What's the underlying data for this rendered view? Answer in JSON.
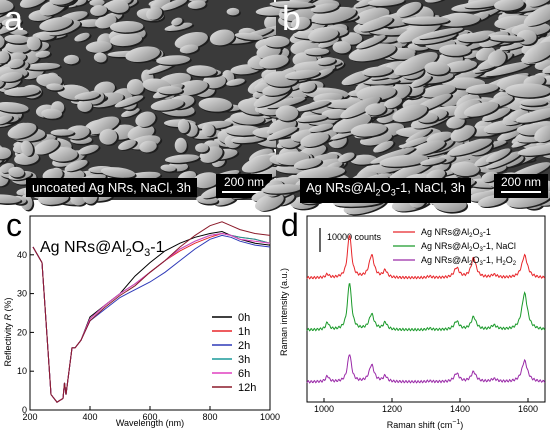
{
  "panels": {
    "a": {
      "letter": "a",
      "caption": "uncoated Ag NRs, NaCl, 3h",
      "scale_label": "200 nm"
    },
    "b": {
      "letter": "b",
      "caption_pre": "Ag NRs@Al",
      "caption_sub1": "2",
      "caption_mid": "O",
      "caption_sub2": "3",
      "caption_post": "-1, NaCl, 3h",
      "scale_label": "200 nm"
    },
    "c": {
      "letter": "c"
    },
    "d": {
      "letter": "d"
    }
  },
  "chart_data": [
    {
      "panel": "c",
      "type": "line",
      "title": "Ag NRs@Al2O3-1",
      "title_parts": {
        "pre": "Ag NRs@Al",
        "sub1": "2",
        "mid": "O",
        "sub2": "3",
        "post": "-1"
      },
      "xlabel": "Wavelength (nm)",
      "ylabel": "Reflectivity R (%)",
      "ylabel_parts": {
        "pre": "Reflectivity ",
        "ital": "R",
        "post": " (%)"
      },
      "xlim": [
        200,
        1000
      ],
      "ylim": [
        0,
        50
      ],
      "xticks": [
        200,
        400,
        600,
        800,
        1000
      ],
      "yticks": [
        0,
        10,
        20,
        30,
        40
      ],
      "legend_position": "bottom-right",
      "x": [
        210,
        240,
        270,
        290,
        300,
        310,
        315,
        320,
        330,
        340,
        350,
        370,
        400,
        450,
        500,
        550,
        600,
        650,
        700,
        750,
        800,
        840,
        870,
        900,
        950,
        1000
      ],
      "series": [
        {
          "name": "0h",
          "color": "#000000",
          "values": [
            42,
            38,
            4,
            2,
            2.5,
            3,
            7,
            4,
            10,
            16,
            16,
            18,
            24,
            27,
            30,
            34.5,
            38,
            41,
            43,
            44.5,
            45.5,
            46,
            45,
            44,
            43,
            42.5
          ]
        },
        {
          "name": "1h",
          "color": "#e8262a",
          "values": [
            42,
            38,
            4,
            2,
            2.5,
            3,
            7,
            4,
            10,
            16,
            16,
            18,
            23.5,
            27,
            30,
            32.5,
            35.5,
            38.5,
            41,
            43,
            44.5,
            45.5,
            45,
            44.5,
            44,
            43
          ]
        },
        {
          "name": "2h",
          "color": "#2f3ab8",
          "values": [
            42,
            38,
            4,
            2,
            2.5,
            3,
            7,
            4,
            10,
            16,
            16,
            18,
            23,
            26,
            29,
            31,
            33,
            35.5,
            38.5,
            41.5,
            44,
            45,
            44.5,
            43.5,
            42.5,
            42
          ]
        },
        {
          "name": "3h",
          "color": "#1a9a9a",
          "values": [
            42,
            38,
            4,
            2,
            2.5,
            3,
            7,
            4,
            10,
            16,
            16,
            18,
            23.5,
            27,
            30,
            32.5,
            35.5,
            38.5,
            41.5,
            43.5,
            45,
            45.5,
            45,
            44.5,
            44,
            43
          ]
        },
        {
          "name": "6h",
          "color": "#e040c0",
          "values": [
            42,
            38,
            4,
            2,
            2.5,
            3,
            7,
            4,
            10,
            16,
            16,
            18,
            23.5,
            27,
            30,
            32.5,
            35.5,
            38.5,
            41.5,
            43.5,
            45,
            45.5,
            45,
            44,
            43.5,
            43
          ]
        },
        {
          "name": "12h",
          "color": "#8b1a2a",
          "values": [
            42,
            38,
            4,
            2,
            2.5,
            3,
            7,
            4,
            10,
            16,
            16,
            18,
            23,
            26.5,
            29.5,
            32,
            35.5,
            38.5,
            42,
            45,
            47.5,
            48.5,
            47.5,
            46.5,
            45.5,
            45
          ]
        }
      ]
    },
    {
      "panel": "d",
      "type": "line",
      "xlabel": "Raman shift (cm⁻¹)",
      "xlabel_parts": {
        "pre": "Raman shift (cm",
        "sup": "−1",
        "post": ")"
      },
      "ylabel": "Raman intensity (a.u.)",
      "xlim": [
        950,
        1650
      ],
      "xticks": [
        1000,
        1200,
        1400,
        1600
      ],
      "scale_bar_label": "10000 counts",
      "legend_position": "top-right",
      "peaks": [
        {
          "center": 1010,
          "width": 6
        },
        {
          "center": 1075,
          "width": 7
        },
        {
          "center": 1140,
          "width": 9
        },
        {
          "center": 1180,
          "width": 7
        },
        {
          "center": 1310,
          "width": 8
        },
        {
          "center": 1390,
          "width": 9
        },
        {
          "center": 1440,
          "width": 9
        },
        {
          "center": 1500,
          "width": 10
        },
        {
          "center": 1590,
          "width": 10
        }
      ],
      "series": [
        {
          "name": "Ag NRs@Al2O3-1",
          "name_parts": {
            "pre": "Ag NRs@Al",
            "sub1": "2",
            "mid": "O",
            "sub2": "3",
            "post": "-1"
          },
          "color": "#e8262a",
          "offset": 2,
          "amplitudes": [
            0.12,
            1.55,
            0.8,
            0.25,
            0.05,
            0.35,
            0.7,
            0.1,
            0.8
          ]
        },
        {
          "name": "Ag NRs@Al2O3-1, NaCl",
          "name_parts": {
            "pre": "Ag NRs@Al",
            "sub1": "2",
            "mid": "O",
            "sub2": "3",
            "post": "-1, NaCl"
          },
          "color": "#1a9a2a",
          "offset": 1,
          "amplitudes": [
            0.25,
            1.7,
            0.55,
            0.25,
            0.05,
            0.3,
            0.45,
            0.15,
            1.3
          ]
        },
        {
          "name": "Ag NRs@Al2O3-1, H2O2",
          "name_parts": {
            "pre": "Ag NRs@Al",
            "sub1": "2",
            "mid": "O",
            "sub2": "3",
            "post": "-1, H",
            "sub3": "2",
            "mid2": "O",
            "sub4": "2",
            "post2": ""
          },
          "color": "#9a2aa8",
          "offset": 0,
          "amplitudes": [
            0.2,
            1.0,
            0.6,
            0.2,
            0.03,
            0.3,
            0.35,
            0.1,
            0.75
          ]
        }
      ]
    }
  ]
}
